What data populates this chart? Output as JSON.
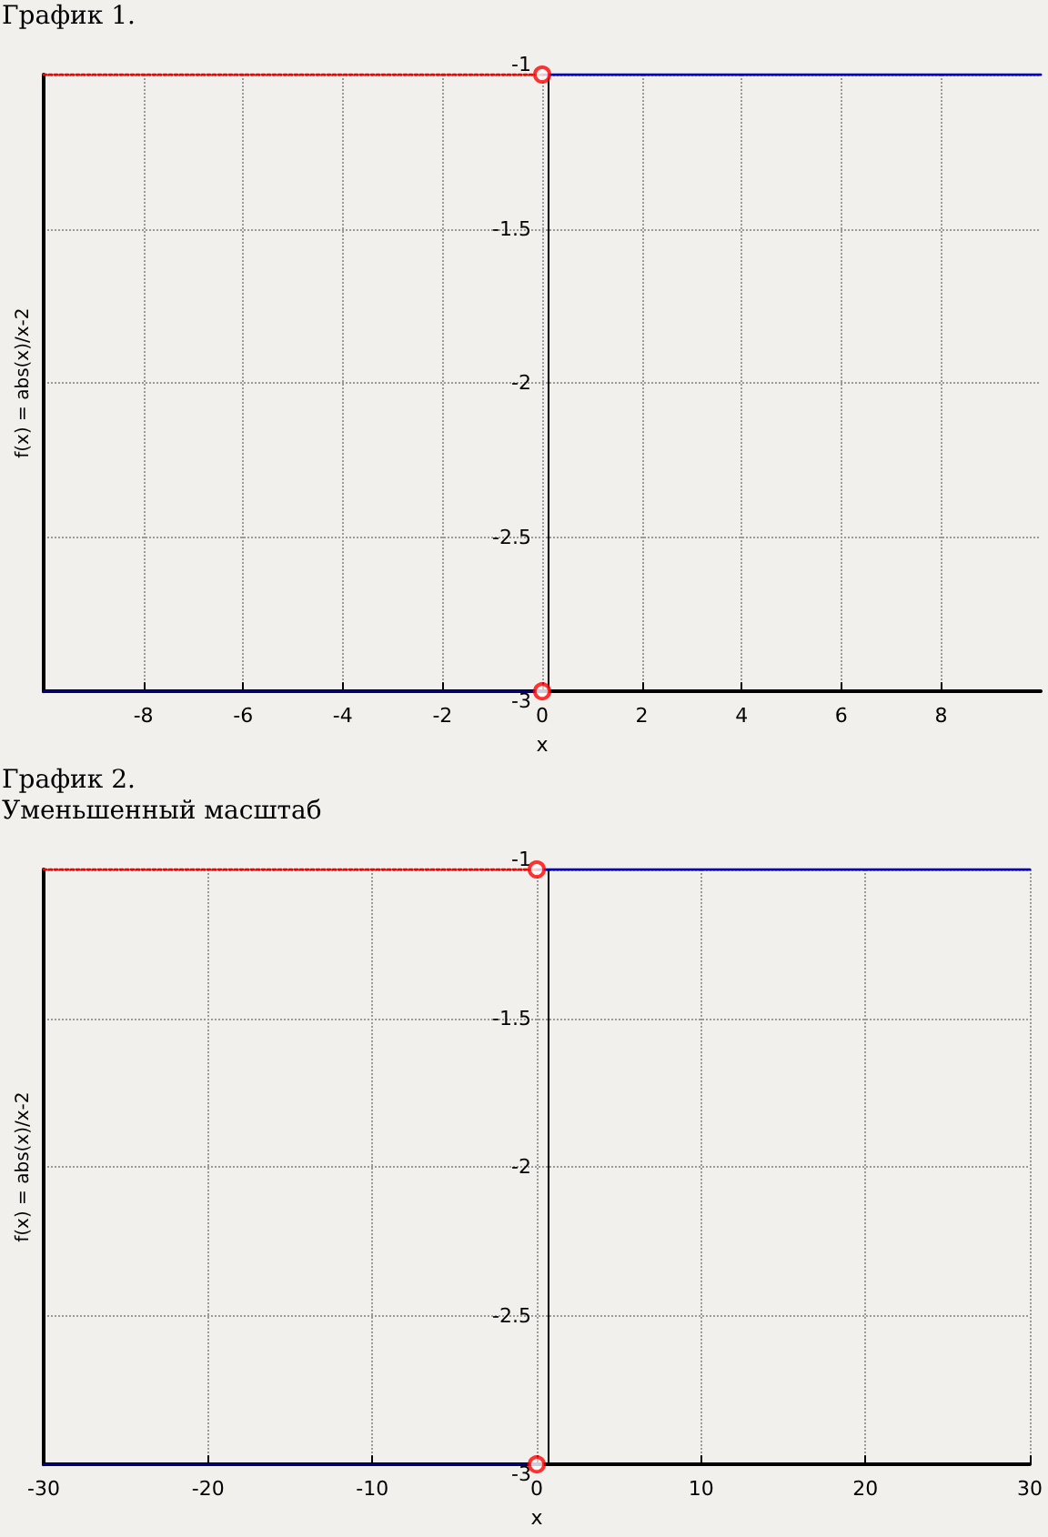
{
  "chart_data": [
    {
      "type": "line",
      "title": "График 1.",
      "xlabel": "x",
      "ylabel": "f(x) = abs(x)/x-2",
      "xlim": [
        -10,
        10
      ],
      "xticks": [
        -8,
        -6,
        -4,
        -2,
        0,
        2,
        4,
        6,
        8
      ],
      "ylim": [
        -3,
        -1
      ],
      "yticks": [
        -1,
        -1.5,
        -2,
        -2.5,
        -3
      ],
      "grid": true,
      "series": [
        {
          "x": [
            -10,
            0
          ],
          "values": [
            -3,
            -3
          ],
          "color": "#000080"
        },
        {
          "x": [
            0,
            10
          ],
          "values": [
            -1,
            -1
          ],
          "color": "#0000cc"
        },
        {
          "x": [
            -10,
            0
          ],
          "values": [
            -1,
            -1
          ],
          "color": "#ff0000",
          "line_style": "dotted"
        },
        {
          "type": "scatter",
          "x": [
            0,
            0
          ],
          "values": [
            -1,
            -3
          ],
          "color": "#ff0000",
          "marker": "circle"
        }
      ]
    },
    {
      "type": "line",
      "title": "График 2.",
      "subtitle": "Уменьшенный масштаб",
      "xlabel": "x",
      "ylabel": "f(x) = abs(x)/x-2",
      "xlim": [
        -30,
        30
      ],
      "xticks": [
        -30,
        -20,
        -10,
        0,
        10,
        20,
        30
      ],
      "ylim": [
        -3,
        -1
      ],
      "yticks": [
        -1,
        -1.5,
        -2,
        -2.5,
        -3
      ],
      "grid": true,
      "series": [
        {
          "x": [
            -30,
            0
          ],
          "values": [
            -3,
            -3
          ],
          "color": "#000080"
        },
        {
          "x": [
            0,
            30
          ],
          "values": [
            -1,
            -1
          ],
          "color": "#0000cc"
        },
        {
          "x": [
            -30,
            0
          ],
          "values": [
            -1,
            -1
          ],
          "color": "#ff0000",
          "line_style": "dotted"
        },
        {
          "type": "scatter",
          "x": [
            0,
            0
          ],
          "values": [
            -1,
            -3
          ],
          "color": "#ff0000",
          "marker": "circle"
        }
      ]
    }
  ]
}
